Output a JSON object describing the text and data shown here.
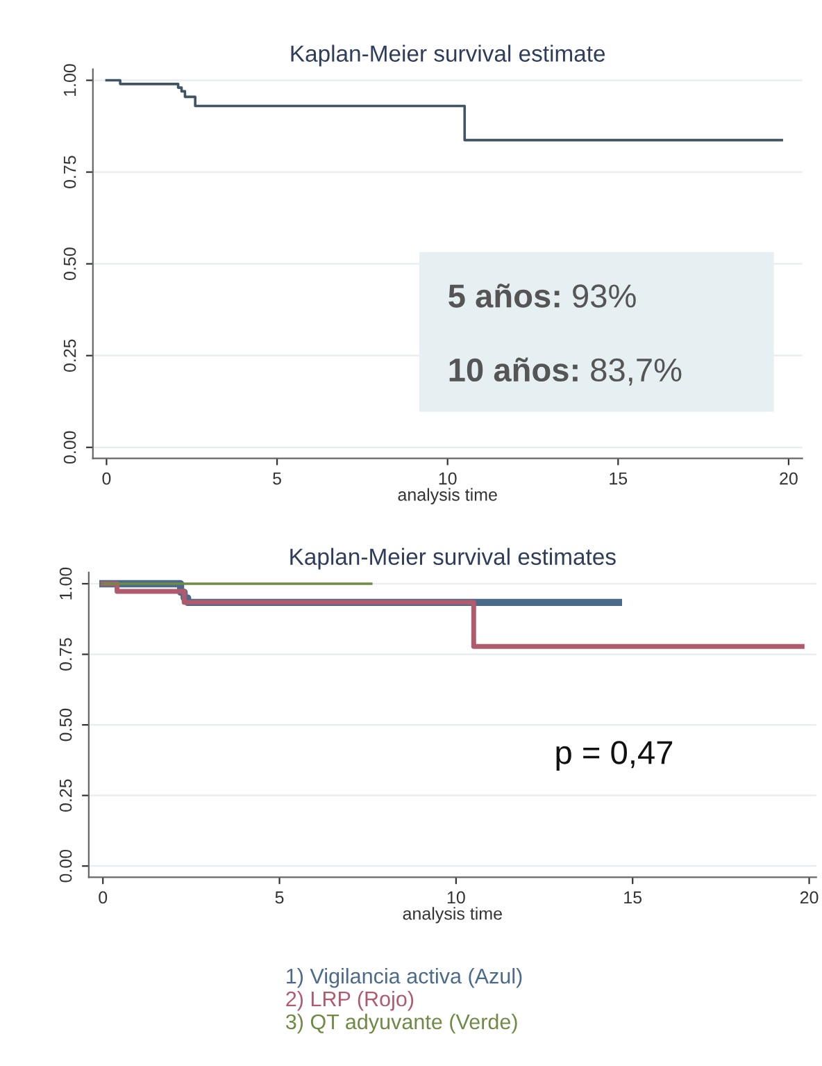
{
  "chart_data": [
    {
      "type": "step",
      "title": "Kaplan-Meier survival estimate",
      "xlabel": "analysis time",
      "xlim": [
        -0.4,
        20.4
      ],
      "ylim": [
        -0.03,
        1.03
      ],
      "xticks": [
        0,
        5,
        10,
        15,
        20
      ],
      "yticks": [
        {
          "value": 0,
          "label": "0.00"
        },
        {
          "value": 0.25,
          "label": "0.25"
        },
        {
          "value": 0.5,
          "label": "0.50"
        },
        {
          "value": 0.75,
          "label": "0.75"
        },
        {
          "value": 1,
          "label": "1.00"
        }
      ],
      "grid": "y",
      "series": [
        {
          "color": "#3f5566",
          "x": [
            0,
            0.4,
            2.1,
            2.2,
            2.3,
            2.6,
            10.5,
            19.8
          ],
          "values": [
            1,
            0.99,
            0.98,
            0.97,
            0.955,
            0.93,
            0.837,
            0.837
          ]
        }
      ],
      "annotations": [
        "5 años: 93%",
        "10 años: 83,7%"
      ]
    },
    {
      "type": "step",
      "title": "Kaplan-Meier survival estimates",
      "xlabel": "analysis time",
      "xlim": [
        -0.4,
        20.2
      ],
      "ylim": [
        -0.04,
        1.04
      ],
      "xticks": [
        0,
        5,
        10,
        15,
        20
      ],
      "yticks": [
        {
          "value": 0,
          "label": "0.00"
        },
        {
          "value": 0.25,
          "label": "0.25"
        },
        {
          "value": 0.5,
          "label": "0.50"
        },
        {
          "value": 0.75,
          "label": "0.75"
        },
        {
          "value": 1,
          "label": "1.00"
        }
      ],
      "grid": "y",
      "legend": "bottom",
      "series": [
        {
          "name": "1) Vigilancia activa (Azul)",
          "color": "#4a6a8c",
          "x": [
            0,
            2.2,
            2.3,
            2.4,
            14.6
          ],
          "values": [
            1,
            0.97,
            0.95,
            0.934,
            0.934
          ]
        },
        {
          "name": "2) LRP (Rojo)",
          "color": "#b05a6e",
          "x": [
            0,
            0.4,
            2.3,
            10.5,
            19.8
          ],
          "values": [
            1,
            0.973,
            0.934,
            0.778,
            0.778
          ]
        },
        {
          "name": "3) QT adyuvante (Verde)",
          "color": "#6f8a45",
          "x": [
            0,
            7.6
          ],
          "values": [
            1,
            1
          ]
        }
      ],
      "annotations": [
        "p = 0,47"
      ]
    }
  ]
}
